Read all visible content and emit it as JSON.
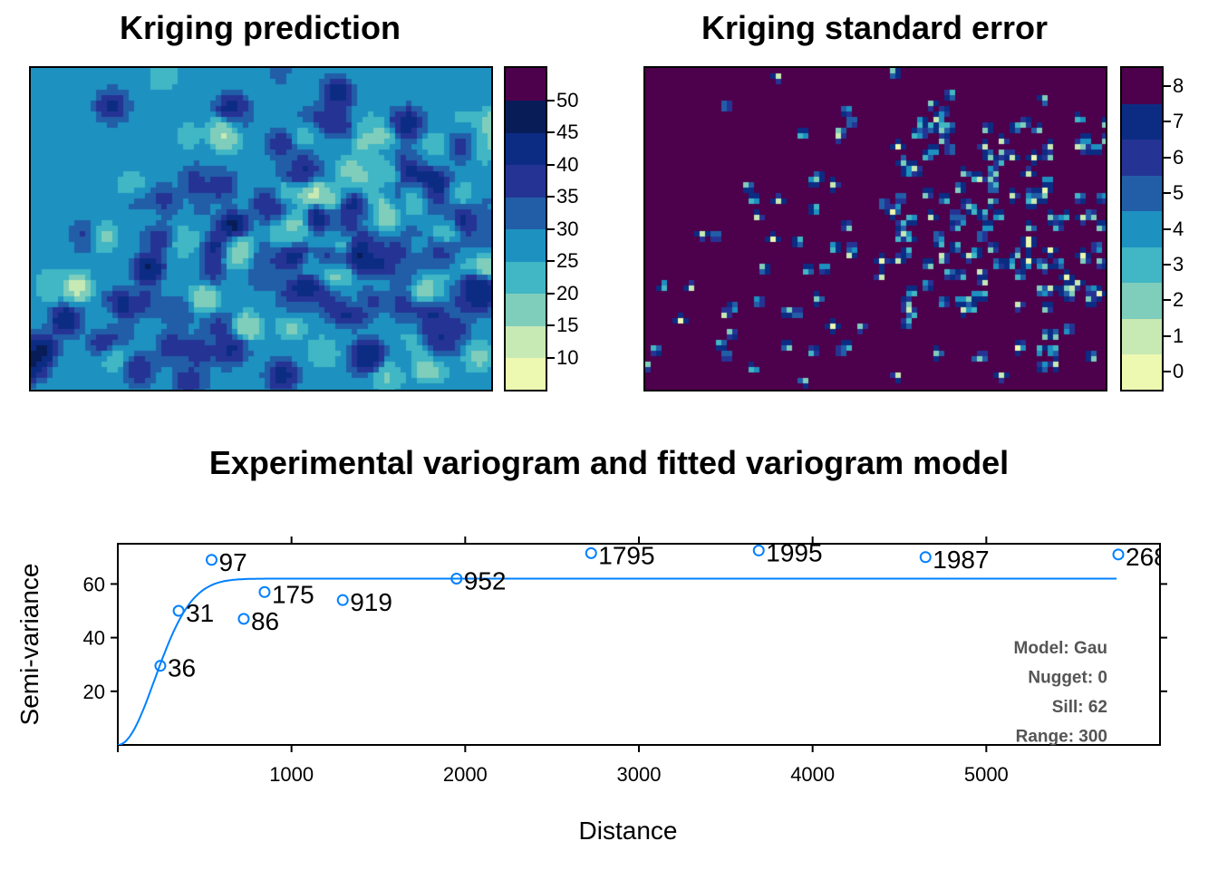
{
  "chart_data": [
    {
      "type": "heatmap",
      "title": "Kriging prediction",
      "legend": {
        "breaks": [
          5,
          10,
          15,
          20,
          25,
          30,
          35,
          40,
          45,
          50,
          55
        ],
        "tick_labels": [
          "10",
          "15",
          "20",
          "25",
          "30",
          "35",
          "40",
          "45",
          "50"
        ],
        "colors": [
          "#edf8b1",
          "#c7e9b4",
          "#7fcdbb",
          "#41b6c4",
          "#1d91c0",
          "#225ea8",
          "#253494",
          "#0c2c84",
          "#081d58",
          "#4d004b"
        ],
        "placement": "right"
      },
      "background_value": 28,
      "colors": {
        "background": "#41b6c4"
      }
    },
    {
      "type": "heatmap",
      "title": "Kriging standard error",
      "legend": {
        "breaks": [
          -0.5,
          0.5,
          1.5,
          2.5,
          3.5,
          4.5,
          5.5,
          6.5,
          7.5,
          8.5
        ],
        "tick_labels": [
          "0",
          "1",
          "2",
          "3",
          "4",
          "5",
          "6",
          "7",
          "8"
        ],
        "colors": [
          "#edf8b1",
          "#c7e9b4",
          "#7fcdbb",
          "#41b6c4",
          "#1d91c0",
          "#225ea8",
          "#253494",
          "#0c2c84",
          "#4d004b"
        ],
        "placement": "right"
      },
      "background_value": 8,
      "colors": {
        "background": "#4d004b"
      }
    },
    {
      "type": "scatter",
      "title": "Experimental variogram and fitted variogram model",
      "xlabel": "Distance",
      "ylabel": "Semi-variance",
      "xlim": [
        0,
        6000
      ],
      "ylim": [
        0,
        75
      ],
      "x_ticks": [
        1000,
        2000,
        3000,
        4000,
        5000
      ],
      "y_ticks": [
        20,
        40,
        60
      ],
      "points": [
        {
          "x": 245,
          "y": 29.5,
          "label": "36"
        },
        {
          "x": 350,
          "y": 50,
          "label": "31"
        },
        {
          "x": 540,
          "y": 69,
          "label": "97"
        },
        {
          "x": 725,
          "y": 47,
          "label": "86"
        },
        {
          "x": 845,
          "y": 57,
          "label": "175"
        },
        {
          "x": 1295,
          "y": 54,
          "label": "919"
        },
        {
          "x": 1950,
          "y": 62,
          "label": "952"
        },
        {
          "x": 2725,
          "y": 71.5,
          "label": "1795"
        },
        {
          "x": 3690,
          "y": 72.5,
          "label": "1995"
        },
        {
          "x": 4650,
          "y": 70,
          "label": "1987"
        },
        {
          "x": 5760,
          "y": 71,
          "label": "268"
        }
      ],
      "model": {
        "type": "Gaussian",
        "nugget": 0,
        "sill": 62,
        "range": 300
      },
      "annotation": [
        "Model: Gau",
        "Nugget: 0",
        "Sill: 62",
        "Range: 300"
      ],
      "colors": {
        "points": "#0080ff",
        "line": "#0080ff",
        "annotation": "#555555"
      }
    }
  ]
}
